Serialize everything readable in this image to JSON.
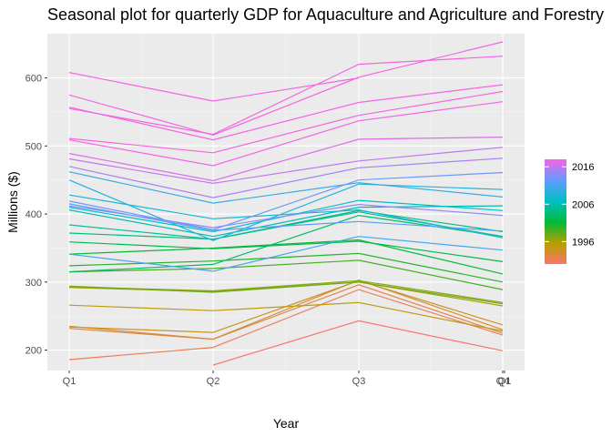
{
  "chart_data": {
    "type": "line",
    "title": "Seasonal plot for quarterly GDP for Aquaculture and Agriculture and Forestry",
    "xlabel": "Year",
    "ylabel": "Millions ($)",
    "x_ticks": [
      "Q1",
      "Q2",
      "Q3",
      "Q4"
    ],
    "x_tick_overlap_label": "Q1",
    "y_ticks": [
      200,
      300,
      400,
      500,
      600
    ],
    "ylim": [
      170,
      665
    ],
    "grid": true,
    "legend": {
      "placement": "right",
      "type": "colorbar",
      "labels": [
        "2016",
        "2006",
        "1996"
      ],
      "label_values": [
        2016,
        2006,
        1996
      ],
      "range": [
        1990,
        2018
      ],
      "colors_low_to_high": [
        "#F8766D",
        "#B79F00",
        "#00BA38",
        "#00BFC4",
        "#619CFF",
        "#F564E3"
      ]
    },
    "series": [
      {
        "year": 1990,
        "values": [
          null,
          178,
          243,
          199
        ]
      },
      {
        "year": 1991,
        "values": [
          186,
          204,
          289,
          222
        ]
      },
      {
        "year": 1992,
        "values": [
          232,
          216,
          296,
          225
        ]
      },
      {
        "year": 1993,
        "values": [
          235,
          216,
          303,
          230
        ]
      },
      {
        "year": 1994,
        "values": [
          234,
          226,
          302,
          237
        ]
      },
      {
        "year": 1995,
        "values": [
          266,
          258,
          270,
          228
        ]
      },
      {
        "year": 1996,
        "values": [
          292,
          286,
          300,
          265
        ]
      },
      {
        "year": 1997,
        "values": [
          293,
          287,
          302,
          270
        ]
      },
      {
        "year": 1998,
        "values": [
          294,
          285,
          300,
          268
        ]
      },
      {
        "year": 1999,
        "values": [
          315,
          320,
          332,
          289
        ]
      },
      {
        "year": 2000,
        "values": [
          324,
          331,
          342,
          300
        ]
      },
      {
        "year": 2001,
        "values": [
          341,
          350,
          362,
          312
        ]
      },
      {
        "year": 2002,
        "values": [
          359,
          349,
          360,
          330
        ]
      },
      {
        "year": 2003,
        "values": [
          315,
          326,
          398,
          367
        ]
      },
      {
        "year": 2004,
        "values": [
          372,
          363,
          405,
          374
        ]
      },
      {
        "year": 2005,
        "values": [
          384,
          363,
          403,
          367
        ]
      },
      {
        "year": 2006,
        "values": [
          406,
          367,
          410,
          412
        ]
      },
      {
        "year": 2007,
        "values": [
          410,
          374,
          420,
          405
        ]
      },
      {
        "year": 2008,
        "values": [
          428,
          393,
          406,
          365
        ]
      },
      {
        "year": 2009,
        "values": [
          450,
          361,
          444,
          436
        ]
      },
      {
        "year": 2010,
        "values": [
          462,
          416,
          446,
          425
        ]
      },
      {
        "year": 2011,
        "values": [
          341,
          316,
          367,
          347
        ]
      },
      {
        "year": 2012,
        "values": [
          415,
          376,
          389,
          375
        ]
      },
      {
        "year": 2013,
        "values": [
          419,
          377,
          450,
          461
        ]
      },
      {
        "year": 2014,
        "values": [
          412,
          380,
          414,
          398
        ]
      },
      {
        "year": 2015,
        "values": [
          470,
          424,
          468,
          482
        ]
      },
      {
        "year": 2016,
        "values": [
          481,
          445,
          478,
          498
        ]
      },
      {
        "year": 2017,
        "values": [
          489,
          449,
          510,
          513
        ]
      },
      {
        "year": 2018,
        "values": [
          509,
          471,
          537,
          565
        ]
      },
      {
        "year": 2019,
        "values": [
          511,
          490,
          545,
          580
        ]
      },
      {
        "year": 2020,
        "values": [
          557,
          509,
          564,
          590
        ]
      },
      {
        "year": 2021,
        "values": [
          555,
          517,
          620,
          632
        ]
      },
      {
        "year": 2022,
        "values": [
          575,
          516,
          601,
          653
        ]
      },
      {
        "year": 2023,
        "values": [
          608,
          566,
          600,
          null
        ]
      }
    ]
  }
}
